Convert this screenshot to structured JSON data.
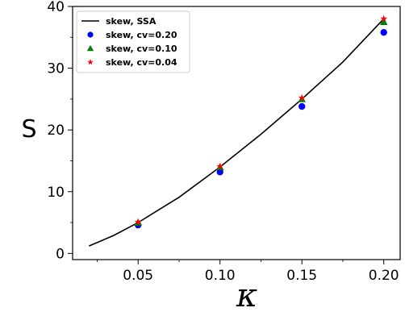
{
  "chart_data": {
    "type": "line",
    "xlabel": "κ",
    "ylabel": "S",
    "xlim": [
      0.01,
      0.21
    ],
    "ylim": [
      -1,
      40
    ],
    "xticks": [
      0.05,
      0.1,
      0.15,
      0.2
    ],
    "xtick_labels": [
      "0.05",
      "0.10",
      "0.15",
      "0.20"
    ],
    "yticks": [
      0,
      10,
      20,
      30,
      40
    ],
    "ytick_labels": [
      "0",
      "10",
      "20",
      "30",
      "40"
    ],
    "grid": false,
    "legend_position": "top-left",
    "series": [
      {
        "name": "skew, SSA",
        "kind": "line",
        "color": "#000000",
        "x": [
          0.02,
          0.035,
          0.05,
          0.075,
          0.1,
          0.125,
          0.15,
          0.175,
          0.2
        ],
        "y": [
          1.2,
          2.9,
          5.0,
          9.1,
          14.0,
          19.3,
          25.0,
          31.0,
          38.0
        ]
      },
      {
        "name": "skew, cv=0.20",
        "kind": "marker",
        "marker": "circle",
        "color": "#0000ff",
        "x": [
          0.05,
          0.1,
          0.15,
          0.2
        ],
        "y": [
          4.6,
          13.2,
          23.8,
          35.8
        ]
      },
      {
        "name": "skew, cv=0.10",
        "kind": "marker",
        "marker": "triangle",
        "color": "#008000",
        "x": [
          0.05,
          0.1,
          0.15,
          0.2
        ],
        "y": [
          5.0,
          14.0,
          25.0,
          37.5
        ]
      },
      {
        "name": "skew, cv=0.04",
        "kind": "marker",
        "marker": "star",
        "color": "#ff0000",
        "x": [
          0.05,
          0.1,
          0.15,
          0.2
        ],
        "y": [
          5.1,
          14.1,
          25.2,
          38.0
        ]
      }
    ]
  }
}
